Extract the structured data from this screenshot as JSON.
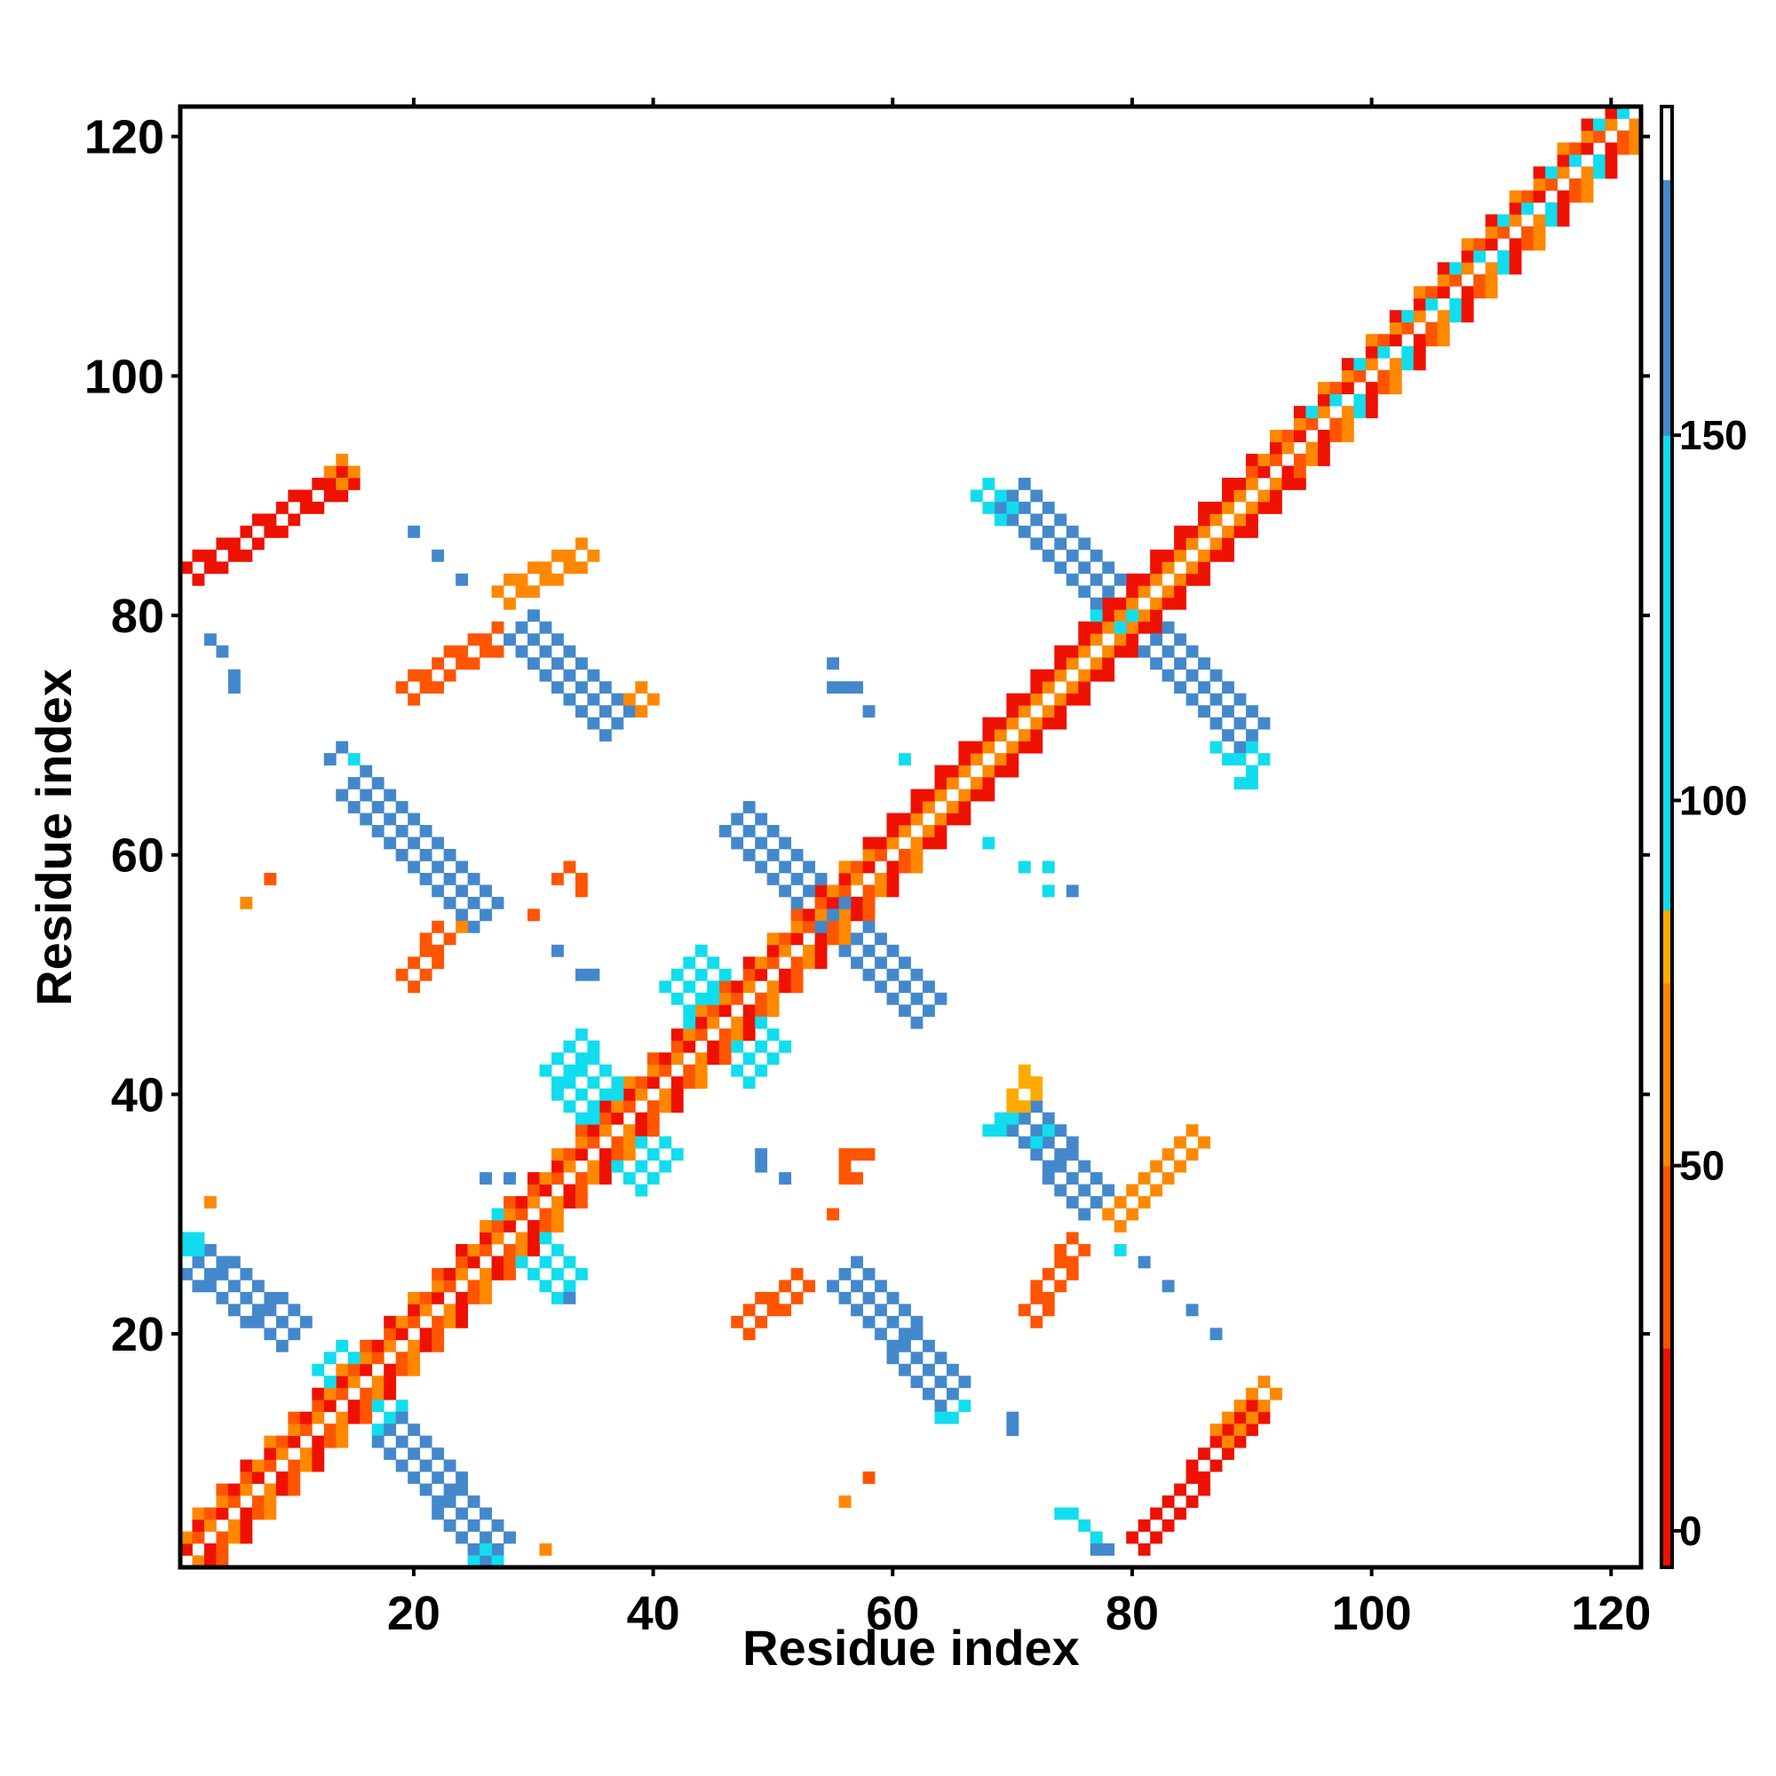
{
  "chart_data": {
    "type": "heatmap",
    "title": "",
    "xlabel": "Residue index",
    "ylabel": "Residue index",
    "xlim": [
      1,
      122
    ],
    "ylim": [
      1,
      122
    ],
    "x_ticks": [
      20,
      40,
      60,
      80,
      100,
      120
    ],
    "y_ticks": [
      20,
      40,
      60,
      80,
      100,
      120
    ],
    "grid": false,
    "colorbar": {
      "ticks": [
        0,
        50,
        100,
        150
      ],
      "range": [
        -5,
        195
      ],
      "bands": [
        {
          "from": -5,
          "to": 25,
          "color": "#ee1100"
        },
        {
          "from": 25,
          "to": 50,
          "color": "#ff5500"
        },
        {
          "from": 50,
          "to": 75,
          "color": "#ff8800"
        },
        {
          "from": 75,
          "to": 85,
          "color": "#ffaa00"
        },
        {
          "from": 85,
          "to": 150,
          "color": "#11ddee"
        },
        {
          "from": 150,
          "to": 185,
          "color": "#4488cc"
        },
        {
          "from": 185,
          "to": 195,
          "color": "#ffffff"
        }
      ]
    },
    "segments": [
      {
        "from": [
          1,
          1
        ],
        "to": [
          122,
          122
        ],
        "width": 5,
        "palette": [
          "#ee1100",
          "#ff5500",
          "#ff8800",
          "#11ddee"
        ],
        "value": 40
      },
      {
        "from": [
          2,
          26
        ],
        "to": [
          10,
          20
        ],
        "width": 3,
        "color": "#4488cc",
        "value": 165
      },
      {
        "from": [
          13,
          18
        ],
        "to": [
          18,
          13
        ],
        "width": 3,
        "color": "#11ddee",
        "value": 120
      },
      {
        "from": [
          18,
          12
        ],
        "to": [
          27,
          2
        ],
        "width": 3,
        "color": "#4488cc",
        "value": 165
      },
      {
        "from": [
          26,
          2
        ],
        "to": [
          27,
          1
        ],
        "width": 2,
        "color": "#11ddee",
        "value": 120
      },
      {
        "from": [
          27,
          30
        ],
        "to": [
          33,
          24
        ],
        "width": 3,
        "color": "#11ddee",
        "value": 120
      },
      {
        "from": [
          33,
          44
        ],
        "to": [
          37,
          38
        ],
        "width": 4,
        "color": "#11ddee",
        "value": 120
      },
      {
        "from": [
          37,
          38
        ],
        "to": [
          41,
          34
        ],
        "width": 4,
        "color": "#11ddee",
        "value": 120
      },
      {
        "from": [
          43,
          51
        ],
        "to": [
          46,
          47
        ],
        "width": 4,
        "color": "#11ddee",
        "value": 120
      },
      {
        "from": [
          46,
          47
        ],
        "to": [
          50,
          43
        ],
        "width": 4,
        "color": "#11ddee",
        "value": 120
      },
      {
        "from": [
          47,
          63
        ],
        "to": [
          54,
          56
        ],
        "width": 3,
        "color": "#4488cc",
        "value": 165
      },
      {
        "from": [
          54,
          56
        ],
        "to": [
          63,
          47
        ],
        "width": 3,
        "color": "#4488cc",
        "value": 165
      },
      {
        "from": [
          15,
          66
        ],
        "to": [
          26,
          55
        ],
        "width": 3,
        "color": "#4488cc",
        "value": 165
      },
      {
        "from": [
          15,
          66
        ],
        "to": [
          18,
          63
        ],
        "width": 2,
        "color": "#11ddee",
        "value": 120
      },
      {
        "from": [
          56,
          25
        ],
        "to": [
          65,
          15
        ],
        "width": 3,
        "color": "#4488cc",
        "value": 165
      },
      {
        "from": [
          63,
          17
        ],
        "to": [
          66,
          14
        ],
        "width": 2,
        "color": "#11ddee",
        "value": 120
      },
      {
        "from": [
          29,
          79
        ],
        "to": [
          37,
          71
        ],
        "width": 3,
        "color": "#4488cc",
        "value": 165
      },
      {
        "from": [
          29,
          79
        ],
        "to": [
          31,
          77
        ],
        "width": 2,
        "color": "#11ddee",
        "value": 120
      },
      {
        "from": [
          71,
          38
        ],
        "to": [
          77,
          31
        ],
        "width": 3,
        "color": "#4488cc",
        "value": 165
      },
      {
        "from": [
          69,
          38
        ],
        "to": [
          73,
          37
        ],
        "width": 2,
        "color": "#11ddee",
        "value": 120
      },
      {
        "from": [
          70,
          90
        ],
        "to": [
          79,
          81
        ],
        "width": 3,
        "color": "#4488cc",
        "value": 165
      },
      {
        "from": [
          68,
          91
        ],
        "to": [
          70,
          89
        ],
        "width": 2,
        "color": "#11ddee",
        "value": 120
      },
      {
        "from": [
          81,
          79
        ],
        "to": [
          90,
          70
        ],
        "width": 3,
        "color": "#4488cc",
        "value": 165
      },
      {
        "from": [
          88,
          70
        ],
        "to": [
          91,
          68
        ],
        "width": 2,
        "color": "#11ddee",
        "value": 120
      },
      {
        "from": [
          78,
          81
        ],
        "to": [
          82,
          78
        ],
        "width": 2,
        "color": "#11ddee",
        "value": 120
      },
      {
        "from": [
          2,
          83
        ],
        "to": [
          15,
          91
        ],
        "width": 2,
        "color": "#ee1100",
        "value": 10
      },
      {
        "from": [
          12,
          89
        ],
        "to": [
          15,
          92
        ],
        "width": 2,
        "color": "#ff8800",
        "value": 60
      },
      {
        "from": [
          81,
          2
        ],
        "to": [
          91,
          13
        ],
        "width": 2,
        "color": "#ee1100",
        "value": 10
      },
      {
        "from": [
          88,
          11
        ],
        "to": [
          92,
          15
        ],
        "width": 2,
        "color": "#ff8800",
        "value": 60
      },
      {
        "from": [
          20,
          73
        ],
        "to": [
          28,
          78
        ],
        "width": 2,
        "color": "#ff5500",
        "value": 35
      },
      {
        "from": [
          28,
          81
        ],
        "to": [
          35,
          85
        ],
        "width": 2,
        "color": "#ff8800",
        "value": 60
      },
      {
        "from": [
          72,
          21
        ],
        "to": [
          76,
          27
        ],
        "width": 2,
        "color": "#ff5500",
        "value": 35
      },
      {
        "from": [
          79,
          29
        ],
        "to": [
          86,
          36
        ],
        "width": 2,
        "color": "#ff8800",
        "value": 60
      },
      {
        "from": [
          71,
          38
        ],
        "to": [
          72,
          41
        ],
        "width": 2,
        "color": "#ffaa00",
        "value": 80
      },
      {
        "from": [
          37,
          71
        ],
        "to": [
          40,
          73
        ],
        "width": 2,
        "color": "#ff8800",
        "value": 60
      },
      {
        "from": [
          20,
          49
        ],
        "to": [
          23,
          53
        ],
        "width": 2,
        "color": "#ff5500",
        "value": 35
      },
      {
        "from": [
          48,
          20
        ],
        "to": [
          53,
          24
        ],
        "width": 2,
        "color": "#ff5500",
        "value": 35
      },
      {
        "from": [
          1,
          27
        ],
        "to": [
          3,
          27
        ],
        "width": 2,
        "color": "#11ddee",
        "value": 120
      }
    ],
    "points": [
      {
        "x": 3,
        "y": 78,
        "color": "#4488cc"
      },
      {
        "x": 4,
        "y": 77,
        "color": "#4488cc"
      },
      {
        "x": 5,
        "y": 75,
        "color": "#4488cc"
      },
      {
        "x": 5,
        "y": 74,
        "color": "#4488cc"
      },
      {
        "x": 13,
        "y": 68,
        "color": "#4488cc"
      },
      {
        "x": 14,
        "y": 69,
        "color": "#4488cc"
      },
      {
        "x": 15,
        "y": 68,
        "color": "#11ddee"
      },
      {
        "x": 20,
        "y": 87,
        "color": "#4488cc"
      },
      {
        "x": 22,
        "y": 85,
        "color": "#4488cc"
      },
      {
        "x": 24,
        "y": 83,
        "color": "#4488cc"
      },
      {
        "x": 8,
        "y": 58,
        "color": "#ff5500"
      },
      {
        "x": 6,
        "y": 56,
        "color": "#ff8800"
      },
      {
        "x": 30,
        "y": 55,
        "color": "#ff5500"
      },
      {
        "x": 32,
        "y": 52,
        "color": "#4488cc"
      },
      {
        "x": 34,
        "y": 50,
        "color": "#4488cc"
      },
      {
        "x": 35,
        "y": 50,
        "color": "#4488cc"
      },
      {
        "x": 32,
        "y": 58,
        "color": "#ff5500"
      },
      {
        "x": 33,
        "y": 59,
        "color": "#ff5500"
      },
      {
        "x": 34,
        "y": 58,
        "color": "#ff5500"
      },
      {
        "x": 34,
        "y": 57,
        "color": "#ff5500"
      },
      {
        "x": 55,
        "y": 76,
        "color": "#4488cc"
      },
      {
        "x": 55,
        "y": 74,
        "color": "#4488cc"
      },
      {
        "x": 56,
        "y": 74,
        "color": "#4488cc"
      },
      {
        "x": 57,
        "y": 74,
        "color": "#4488cc"
      },
      {
        "x": 58,
        "y": 72,
        "color": "#4488cc"
      },
      {
        "x": 61,
        "y": 68,
        "color": "#11ddee"
      },
      {
        "x": 68,
        "y": 61,
        "color": "#11ddee"
      },
      {
        "x": 71,
        "y": 59,
        "color": "#11ddee"
      },
      {
        "x": 73,
        "y": 59,
        "color": "#11ddee"
      },
      {
        "x": 73,
        "y": 57,
        "color": "#11ddee"
      },
      {
        "x": 75,
        "y": 57,
        "color": "#4488cc"
      },
      {
        "x": 89,
        "y": 66,
        "color": "#11ddee"
      },
      {
        "x": 90,
        "y": 66,
        "color": "#11ddee"
      },
      {
        "x": 49,
        "y": 35,
        "color": "#4488cc"
      },
      {
        "x": 49,
        "y": 34,
        "color": "#4488cc"
      },
      {
        "x": 51,
        "y": 33,
        "color": "#4488cc"
      },
      {
        "x": 26,
        "y": 33,
        "color": "#4488cc"
      },
      {
        "x": 28,
        "y": 33,
        "color": "#4488cc"
      },
      {
        "x": 32,
        "y": 25,
        "color": "#4488cc"
      },
      {
        "x": 33,
        "y": 23,
        "color": "#4488cc"
      },
      {
        "x": 34,
        "y": 25,
        "color": "#4488cc"
      },
      {
        "x": 3,
        "y": 31,
        "color": "#ff8800"
      },
      {
        "x": 31,
        "y": 2,
        "color": "#ff8800"
      },
      {
        "x": 55,
        "y": 30,
        "color": "#ff5500"
      },
      {
        "x": 56,
        "y": 35,
        "color": "#ff5500"
      },
      {
        "x": 57,
        "y": 35,
        "color": "#ff5500"
      },
      {
        "x": 58,
        "y": 35,
        "color": "#ff5500"
      },
      {
        "x": 56,
        "y": 34,
        "color": "#ff5500"
      },
      {
        "x": 56,
        "y": 33,
        "color": "#ff5500"
      },
      {
        "x": 57,
        "y": 33,
        "color": "#ff5500"
      },
      {
        "x": 55,
        "y": 24,
        "color": "#ff8800"
      },
      {
        "x": 58,
        "y": 8,
        "color": "#ff5500"
      },
      {
        "x": 56,
        "y": 6,
        "color": "#ff8800"
      },
      {
        "x": 64,
        "y": 13,
        "color": "#11ddee"
      },
      {
        "x": 70,
        "y": 13,
        "color": "#4488cc"
      },
      {
        "x": 70,
        "y": 12,
        "color": "#4488cc"
      },
      {
        "x": 79,
        "y": 27,
        "color": "#11ddee"
      },
      {
        "x": 81,
        "y": 26,
        "color": "#4488cc"
      },
      {
        "x": 83,
        "y": 24,
        "color": "#4488cc"
      },
      {
        "x": 85,
        "y": 22,
        "color": "#4488cc"
      },
      {
        "x": 87,
        "y": 20,
        "color": "#4488cc"
      },
      {
        "x": 74,
        "y": 5,
        "color": "#11ddee"
      },
      {
        "x": 75,
        "y": 5,
        "color": "#11ddee"
      },
      {
        "x": 76,
        "y": 4,
        "color": "#11ddee"
      },
      {
        "x": 77,
        "y": 3,
        "color": "#11ddee"
      },
      {
        "x": 77,
        "y": 2,
        "color": "#4488cc"
      },
      {
        "x": 78,
        "y": 2,
        "color": "#4488cc"
      },
      {
        "x": 24,
        "y": 54,
        "color": "#ff8800"
      }
    ]
  }
}
